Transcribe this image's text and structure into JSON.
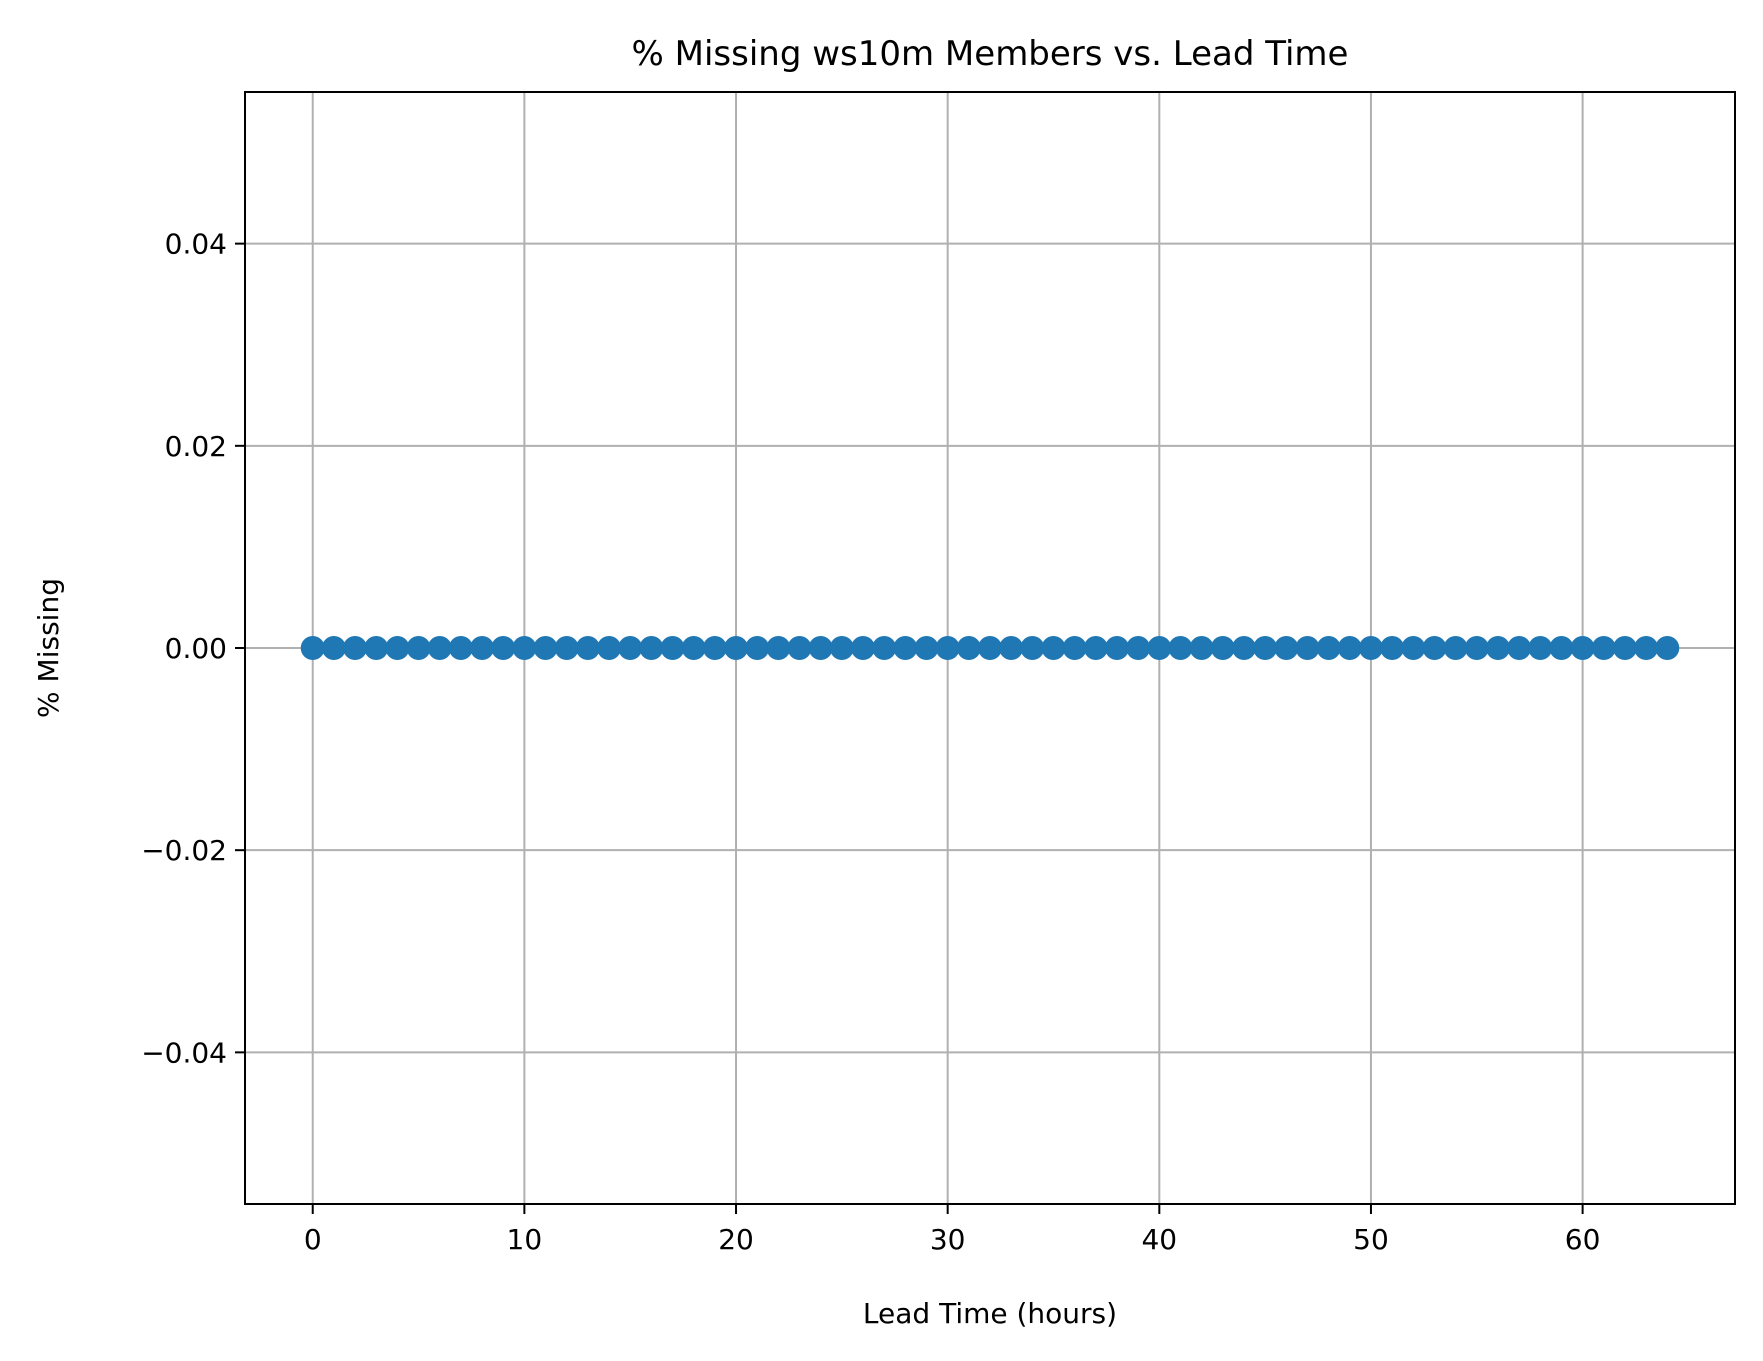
{
  "chart_data": {
    "type": "line",
    "title": "% Missing ws10m Members vs. Lead Time",
    "xlabel": "Lead Time (hours)",
    "ylabel": "% Missing",
    "xlim": [
      -3.2,
      67.2
    ],
    "ylim": [
      -0.055,
      0.055
    ],
    "x_ticks": [
      0,
      10,
      20,
      30,
      40,
      50,
      60
    ],
    "x_tick_labels": [
      "0",
      "10",
      "20",
      "30",
      "40",
      "50",
      "60"
    ],
    "y_ticks": [
      -0.04,
      -0.02,
      0.0,
      0.02,
      0.04
    ],
    "y_tick_labels": [
      "−0.04",
      "−0.02",
      "0.00",
      "0.02",
      "0.04"
    ],
    "grid": true,
    "series": [
      {
        "marker": "circle",
        "color": "#1f77b4",
        "x": [
          0,
          1,
          2,
          3,
          4,
          5,
          6,
          7,
          8,
          9,
          10,
          11,
          12,
          13,
          14,
          15,
          16,
          17,
          18,
          19,
          20,
          21,
          22,
          23,
          24,
          25,
          26,
          27,
          28,
          29,
          30,
          31,
          32,
          33,
          34,
          35,
          36,
          37,
          38,
          39,
          40,
          41,
          42,
          43,
          44,
          45,
          46,
          47,
          48,
          49,
          50,
          51,
          52,
          53,
          54,
          55,
          56,
          57,
          58,
          59,
          60,
          61,
          62,
          63,
          64
        ],
        "y": [
          0,
          0,
          0,
          0,
          0,
          0,
          0,
          0,
          0,
          0,
          0,
          0,
          0,
          0,
          0,
          0,
          0,
          0,
          0,
          0,
          0,
          0,
          0,
          0,
          0,
          0,
          0,
          0,
          0,
          0,
          0,
          0,
          0,
          0,
          0,
          0,
          0,
          0,
          0,
          0,
          0,
          0,
          0,
          0,
          0,
          0,
          0,
          0,
          0,
          0,
          0,
          0,
          0,
          0,
          0,
          0,
          0,
          0,
          0,
          0,
          0,
          0,
          0,
          0,
          0
        ]
      }
    ]
  },
  "colors": {
    "series": "#1f77b4",
    "grid": "#b0b0b0",
    "axes": "#000000"
  }
}
